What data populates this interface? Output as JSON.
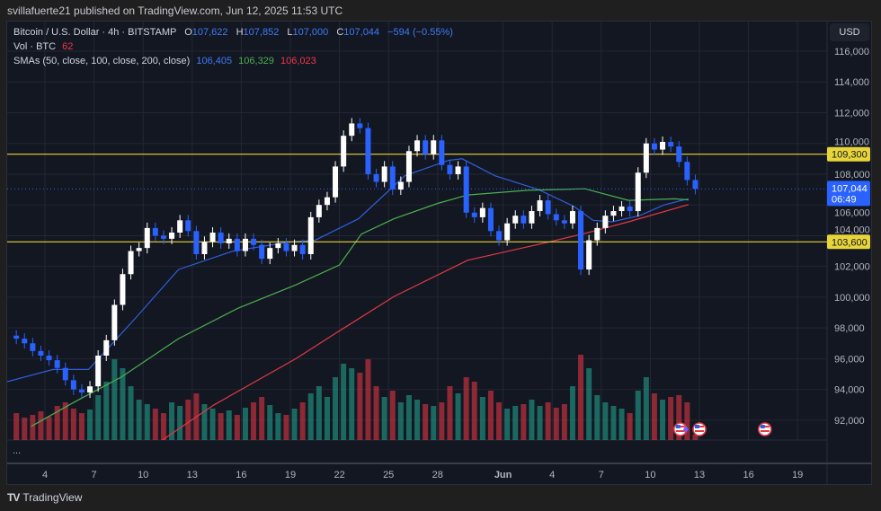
{
  "header": {
    "published": "svillafuerte21 published on TradingView.com, Jun 12, 2025 11:53 UTC"
  },
  "legend": {
    "symbol": "Bitcoin / U.S. Dollar · 4h · BITSTAMP",
    "o_label": "O",
    "o": "107,622",
    "h_label": "H",
    "h": "107,852",
    "l_label": "L",
    "l": "107,000",
    "c_label": "C",
    "c": "107,044",
    "change": "−594 (−0.55%)",
    "vol_label": "Vol · BTC",
    "vol": "62",
    "sma_label": "SMAs (50, close, 100, close, 200, close)",
    "sma50": "106,405",
    "sma100": "106,329",
    "sma200": "106,023"
  },
  "currency_button": "USD",
  "lower_pane_menu": "...",
  "footer": {
    "brand": "TradingView"
  },
  "colors": {
    "up": "#ffffff",
    "down": "#2962ff",
    "sma50": "#2f5fdc",
    "sma100": "#4caf50",
    "sma200": "#e03a45",
    "hline": "#e8d53a",
    "vol_up": "#22ab94",
    "vol_down": "#f23645",
    "last_price": "#2962ff"
  },
  "chart_data": {
    "type": "candlestick",
    "title": "",
    "interval_rendered": "12h",
    "start": "2025-05-02T00:00",
    "close": [
      97300,
      97000,
      96500,
      96200,
      95900,
      95400,
      94600,
      94000,
      93800,
      94200,
      96200,
      97200,
      99500,
      101500,
      103000,
      103200,
      104500,
      104000,
      103800,
      104200,
      105000,
      104300,
      102800,
      103600,
      104200,
      103500,
      103800,
      103000,
      103800,
      103400,
      102500,
      103200,
      103500,
      103000,
      103400,
      102800,
      105200,
      106000,
      106500,
      108500,
      110500,
      111300,
      111000,
      108000,
      107500,
      108500,
      107000,
      107500,
      109500,
      110200,
      109300,
      110200,
      108600,
      108000,
      108500,
      105500,
      105200,
      105800,
      104300,
      103700,
      104800,
      105300,
      104800,
      105600,
      106300,
      105400,
      105000,
      104800,
      105600,
      101800,
      103700,
      104500,
      105300,
      105600,
      105900,
      105600,
      108100,
      110000,
      109600,
      110100,
      109800,
      108800,
      107622,
      107044
    ],
    "volume": [
      300,
      250,
      280,
      320,
      260,
      380,
      420,
      350,
      300,
      340,
      500,
      650,
      900,
      800,
      600,
      450,
      400,
      350,
      300,
      420,
      380,
      450,
      520,
      400,
      350,
      300,
      330,
      280,
      360,
      420,
      480,
      390,
      300,
      280,
      350,
      420,
      520,
      600,
      480,
      700,
      850,
      800,
      750,
      900,
      600,
      480,
      550,
      420,
      500,
      450,
      400,
      380,
      420,
      600,
      520,
      700,
      650,
      480,
      550,
      420,
      350,
      380,
      400,
      450,
      380,
      420,
      360,
      400,
      600,
      950,
      800,
      500,
      420,
      380,
      350,
      300,
      550,
      700,
      520,
      450,
      480,
      500,
      420,
      62
    ],
    "sma": [
      {
        "name": "SMA 50",
        "points": [
          [
            "2025-05-01T16:00",
            94500
          ],
          [
            "2025-05-04T12:00",
            95300
          ],
          [
            "2025-05-06T16:00",
            95300
          ],
          [
            "2025-05-09T12:00",
            98600
          ],
          [
            "2025-05-12T04:00",
            101800
          ],
          [
            "2025-05-15T12:00",
            103000
          ],
          [
            "2025-05-19T00:00",
            103600
          ],
          [
            "2025-05-20T12:00",
            103700
          ],
          [
            "2025-05-23T04:00",
            105100
          ],
          [
            "2025-05-26T00:00",
            107900
          ],
          [
            "2025-05-28T16:00",
            108900
          ],
          [
            "2025-05-29T12:00",
            109000
          ],
          [
            "2025-05-31T12:00",
            107900
          ],
          [
            "2025-06-03T04:00",
            107000
          ],
          [
            "2025-06-05T08:00",
            105900
          ],
          [
            "2025-06-06T12:00",
            105000
          ],
          [
            "2025-06-07T16:00",
            104900
          ],
          [
            "2025-06-09T08:00",
            105300
          ],
          [
            "2025-06-10T20:00",
            106000
          ],
          [
            "2025-06-12T08:00",
            106405
          ]
        ]
      },
      {
        "name": "SMA 100",
        "points": [
          [
            "2025-05-03T04:00",
            91600
          ],
          [
            "2025-05-05T20:00",
            93200
          ],
          [
            "2025-05-08T16:00",
            94800
          ],
          [
            "2025-05-12T04:00",
            97300
          ],
          [
            "2025-05-15T20:00",
            99300
          ],
          [
            "2025-05-19T08:00",
            100800
          ],
          [
            "2025-05-22T00:00",
            102100
          ],
          [
            "2025-05-23T08:00",
            104100
          ],
          [
            "2025-05-25T08:00",
            105100
          ],
          [
            "2025-05-28T00:00",
            106100
          ],
          [
            "2025-05-29T20:00",
            106650
          ],
          [
            "2025-06-02T12:00",
            106950
          ],
          [
            "2025-06-06T00:00",
            107050
          ],
          [
            "2025-06-08T16:00",
            106300
          ],
          [
            "2025-06-11T12:00",
            106400
          ],
          [
            "2025-06-12T08:00",
            106329
          ]
        ]
      },
      {
        "name": "SMA 200",
        "points": [
          [
            "2025-05-11T04:00",
            90700
          ],
          [
            "2025-05-14T08:00",
            93000
          ],
          [
            "2025-05-19T08:00",
            96000
          ],
          [
            "2025-05-21T20:00",
            97700
          ],
          [
            "2025-05-25T08:00",
            100050
          ],
          [
            "2025-05-29T20:00",
            102400
          ],
          [
            "2025-06-03T16:00",
            103550
          ],
          [
            "2025-06-06T00:00",
            104150
          ],
          [
            "2025-06-08T16:00",
            104900
          ],
          [
            "2025-06-12T08:00",
            106023
          ]
        ]
      }
    ],
    "horizontal_levels": [
      {
        "value": 109300,
        "label": "109,300"
      },
      {
        "value": 103600,
        "label": "103,600"
      }
    ],
    "last_price": {
      "value": 107044,
      "label": "107,044",
      "countdown": "06:49"
    },
    "y_ticks": [
      "116,000",
      "114,000",
      "112,000",
      "110,000",
      "108,000",
      "106,000",
      "104,000",
      "102,000",
      "100,000",
      "98,000",
      "96,000",
      "94,000",
      "92,000"
    ],
    "y_range": [
      90700,
      117600
    ],
    "x_ticks": [
      [
        "2025-05-04",
        "4"
      ],
      [
        "2025-05-07",
        "7"
      ],
      [
        "2025-05-10",
        "10"
      ],
      [
        "2025-05-13",
        "13"
      ],
      [
        "2025-05-16",
        "16"
      ],
      [
        "2025-05-19",
        "19"
      ],
      [
        "2025-05-22",
        "22"
      ],
      [
        "2025-05-25",
        "25"
      ],
      [
        "2025-05-28",
        "28"
      ],
      [
        "2025-06-01",
        "Jun"
      ],
      [
        "2025-06-04",
        "4"
      ],
      [
        "2025-06-07",
        "7"
      ],
      [
        "2025-06-10",
        "10"
      ],
      [
        "2025-06-13",
        "13"
      ],
      [
        "2025-06-16",
        "16"
      ],
      [
        "2025-06-19",
        "19"
      ]
    ],
    "events": [
      [
        "2025-06-11T20:00",
        "us-flag"
      ],
      [
        "2025-06-13T00:00",
        "us-flag"
      ],
      [
        "2025-06-17T00:00",
        "us-flag"
      ]
    ],
    "grid": true
  }
}
